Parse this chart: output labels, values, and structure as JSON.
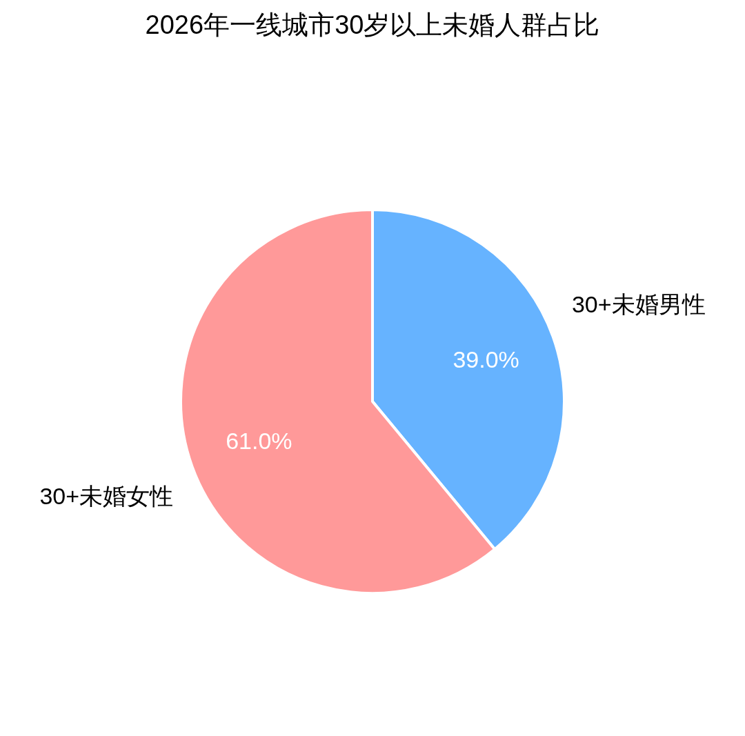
{
  "chart_data": {
    "type": "pie",
    "title": "2026年一线城市30岁以上未婚人群占比",
    "categories": [
      "30+未婚男性",
      "30+未婚女性"
    ],
    "values": [
      39.0,
      61.0
    ],
    "value_labels": [
      "39.0%",
      "61.0%"
    ],
    "colors": [
      "#66b3ff",
      "#ff9999"
    ]
  }
}
